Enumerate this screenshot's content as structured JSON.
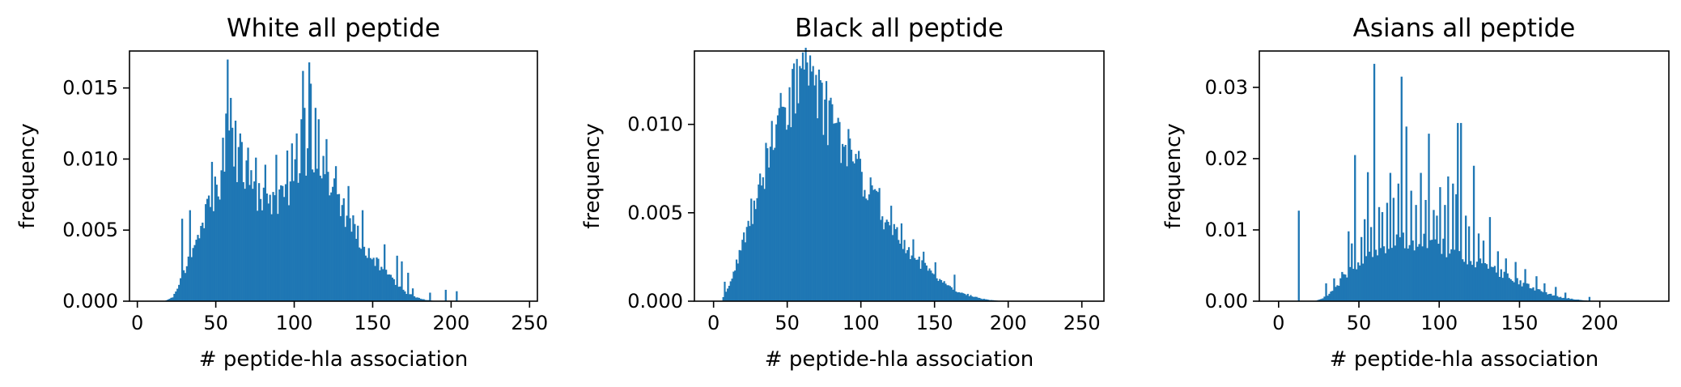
{
  "figure": {
    "accent_color": "#1f77b4"
  },
  "chart_data": [
    {
      "type": "bar",
      "subtype": "histogram",
      "title": "White  all peptide",
      "xlabel": "# peptide-hla association",
      "ylabel": "frequency",
      "xlim": [
        -5,
        255
      ],
      "ylim": [
        0,
        0.0176
      ],
      "xticks": [
        0,
        50,
        100,
        150,
        200,
        250
      ],
      "yticks": [
        0.0,
        0.005,
        0.01,
        0.015
      ],
      "ytick_labels": [
        "0.000",
        "0.005",
        "0.010",
        "0.015"
      ],
      "bin_width": 1,
      "color": "#1f77b4",
      "profile": [
        [
          17,
          0.0
        ],
        [
          22,
          0.0003
        ],
        [
          27,
          0.0015
        ],
        [
          32,
          0.0028
        ],
        [
          38,
          0.0045
        ],
        [
          45,
          0.0065
        ],
        [
          52,
          0.0085
        ],
        [
          58,
          0.0103
        ],
        [
          63,
          0.0098
        ],
        [
          68,
          0.0088
        ],
        [
          73,
          0.0078
        ],
        [
          78,
          0.0072
        ],
        [
          84,
          0.0068
        ],
        [
          90,
          0.007
        ],
        [
          96,
          0.0078
        ],
        [
          102,
          0.009
        ],
        [
          107,
          0.01
        ],
        [
          112,
          0.0098
        ],
        [
          118,
          0.0088
        ],
        [
          124,
          0.0077
        ],
        [
          130,
          0.0066
        ],
        [
          137,
          0.0053
        ],
        [
          144,
          0.004
        ],
        [
          150,
          0.003
        ],
        [
          157,
          0.0021
        ],
        [
          164,
          0.0013
        ],
        [
          171,
          0.0006
        ],
        [
          177,
          0.0003
        ],
        [
          183,
          0.0001
        ],
        [
          190,
          0.0
        ],
        [
          245,
          0.0
        ]
      ],
      "spikes": [
        [
          28,
          0.0058
        ],
        [
          33,
          0.0064
        ],
        [
          47,
          0.0098
        ],
        [
          54,
          0.0115
        ],
        [
          56,
          0.0132
        ],
        [
          57,
          0.017
        ],
        [
          59,
          0.0143
        ],
        [
          60,
          0.0122
        ],
        [
          62,
          0.0127
        ],
        [
          65,
          0.0118
        ],
        [
          66,
          0.0112
        ],
        [
          70,
          0.0108
        ],
        [
          75,
          0.0101
        ],
        [
          81,
          0.0096
        ],
        [
          88,
          0.0103
        ],
        [
          95,
          0.0106
        ],
        [
          98,
          0.0111
        ],
        [
          101,
          0.0118
        ],
        [
          104,
          0.0128
        ],
        [
          105,
          0.0162
        ],
        [
          106,
          0.0136
        ],
        [
          109,
          0.0168
        ],
        [
          110,
          0.0153
        ],
        [
          113,
          0.0136
        ],
        [
          115,
          0.0128
        ],
        [
          120,
          0.0114
        ],
        [
          126,
          0.0095
        ],
        [
          134,
          0.0081
        ],
        [
          143,
          0.0064
        ],
        [
          157,
          0.004
        ],
        [
          165,
          0.0032
        ],
        [
          168,
          0.0028
        ],
        [
          172,
          0.002
        ],
        [
          175,
          0.0009
        ],
        [
          186,
          0.0006
        ],
        [
          196,
          0.0008
        ],
        [
          203,
          0.0007
        ]
      ]
    },
    {
      "type": "bar",
      "subtype": "histogram",
      "title": "Black  all peptide",
      "xlabel": "# peptide-hla association",
      "ylabel": "frequency",
      "xlim": [
        -13,
        265
      ],
      "ylim": [
        0,
        0.01415
      ],
      "xticks": [
        0,
        50,
        100,
        150,
        200,
        250
      ],
      "yticks": [
        0.0,
        0.005,
        0.01
      ],
      "ytick_labels": [
        "0.000",
        "0.005",
        "0.010"
      ],
      "bin_width": 1,
      "color": "#1f77b4",
      "profile": [
        [
          5,
          0.0
        ],
        [
          9,
          0.0008
        ],
        [
          14,
          0.0018
        ],
        [
          20,
          0.0034
        ],
        [
          27,
          0.0054
        ],
        [
          34,
          0.0074
        ],
        [
          41,
          0.0093
        ],
        [
          48,
          0.0108
        ],
        [
          55,
          0.0118
        ],
        [
          62,
          0.0122
        ],
        [
          68,
          0.0118
        ],
        [
          74,
          0.011
        ],
        [
          80,
          0.01
        ],
        [
          87,
          0.009
        ],
        [
          94,
          0.008
        ],
        [
          101,
          0.0069
        ],
        [
          108,
          0.0058
        ],
        [
          116,
          0.0047
        ],
        [
          124,
          0.0037
        ],
        [
          132,
          0.0028
        ],
        [
          140,
          0.0021
        ],
        [
          148,
          0.0015
        ],
        [
          156,
          0.001
        ],
        [
          165,
          0.0006
        ],
        [
          174,
          0.0003
        ],
        [
          184,
          0.0001
        ],
        [
          195,
          0.0
        ],
        [
          255,
          0.0
        ]
      ],
      "spikes": [
        [
          7,
          0.0011
        ],
        [
          11,
          0.001
        ],
        [
          17,
          0.0026
        ],
        [
          22,
          0.0042
        ],
        [
          25,
          0.0058
        ],
        [
          30,
          0.0066
        ],
        [
          36,
          0.0083
        ],
        [
          42,
          0.01
        ],
        [
          46,
          0.011
        ],
        [
          51,
          0.0121
        ],
        [
          53,
          0.0126
        ],
        [
          56,
          0.0137
        ],
        [
          58,
          0.0133
        ],
        [
          60,
          0.0138
        ],
        [
          61,
          0.0131
        ],
        [
          63,
          0.0135
        ],
        [
          65,
          0.0139
        ],
        [
          67,
          0.0133
        ],
        [
          69,
          0.0128
        ],
        [
          71,
          0.0131
        ],
        [
          72,
          0.0125
        ],
        [
          76,
          0.0118
        ],
        [
          79,
          0.011
        ],
        [
          85,
          0.01
        ],
        [
          92,
          0.0092
        ],
        [
          98,
          0.0085
        ],
        [
          106,
          0.007
        ],
        [
          112,
          0.0064
        ],
        [
          120,
          0.0054
        ],
        [
          127,
          0.0044
        ],
        [
          135,
          0.0035
        ],
        [
          142,
          0.0028
        ],
        [
          150,
          0.0022
        ],
        [
          163,
          0.0015
        ]
      ]
    },
    {
      "type": "bar",
      "subtype": "histogram",
      "title": "Asians  all peptide",
      "xlabel": "# peptide-hla association",
      "ylabel": "frequency",
      "xlim": [
        -12,
        243
      ],
      "ylim": [
        0,
        0.0351
      ],
      "xticks": [
        0,
        50,
        100,
        150,
        200
      ],
      "yticks": [
        0.0,
        0.01,
        0.02,
        0.03
      ],
      "ytick_labels": [
        "0.00",
        "0.01",
        "0.02",
        "0.03"
      ],
      "bin_width": 1,
      "color": "#1f77b4",
      "profile": [
        [
          22,
          0.0
        ],
        [
          26,
          0.0003
        ],
        [
          32,
          0.0012
        ],
        [
          38,
          0.0028
        ],
        [
          45,
          0.0045
        ],
        [
          52,
          0.006
        ],
        [
          58,
          0.007
        ],
        [
          64,
          0.0076
        ],
        [
          70,
          0.008
        ],
        [
          77,
          0.0084
        ],
        [
          84,
          0.0086
        ],
        [
          90,
          0.0086
        ],
        [
          96,
          0.0082
        ],
        [
          102,
          0.0076
        ],
        [
          110,
          0.0068
        ],
        [
          118,
          0.006
        ],
        [
          126,
          0.0052
        ],
        [
          134,
          0.0043
        ],
        [
          142,
          0.0035
        ],
        [
          150,
          0.0026
        ],
        [
          158,
          0.0018
        ],
        [
          166,
          0.0011
        ],
        [
          174,
          0.0006
        ],
        [
          182,
          0.0003
        ],
        [
          190,
          0.0001
        ],
        [
          196,
          0.0
        ],
        [
          235,
          0.0
        ]
      ],
      "spikes": [
        [
          12,
          0.0127
        ],
        [
          29,
          0.0025
        ],
        [
          34,
          0.0032
        ],
        [
          39,
          0.0041
        ],
        [
          43,
          0.0098
        ],
        [
          45,
          0.0081
        ],
        [
          47,
          0.0205
        ],
        [
          51,
          0.009
        ],
        [
          53,
          0.0115
        ],
        [
          55,
          0.0181
        ],
        [
          57,
          0.0104
        ],
        [
          59,
          0.0333
        ],
        [
          62,
          0.0132
        ],
        [
          64,
          0.0125
        ],
        [
          67,
          0.0138
        ],
        [
          69,
          0.018
        ],
        [
          71,
          0.0145
        ],
        [
          74,
          0.0165
        ],
        [
          76,
          0.0315
        ],
        [
          79,
          0.0245
        ],
        [
          82,
          0.0155
        ],
        [
          85,
          0.0135
        ],
        [
          88,
          0.018
        ],
        [
          91,
          0.0142
        ],
        [
          93,
          0.0235
        ],
        [
          96,
          0.0128
        ],
        [
          98,
          0.012
        ],
        [
          100,
          0.016
        ],
        [
          103,
          0.0135
        ],
        [
          105,
          0.0175
        ],
        [
          108,
          0.0165
        ],
        [
          110,
          0.015
        ],
        [
          111,
          0.025
        ],
        [
          113,
          0.025
        ],
        [
          116,
          0.012
        ],
        [
          118,
          0.0105
        ],
        [
          121,
          0.019
        ],
        [
          124,
          0.0095
        ],
        [
          127,
          0.0085
        ],
        [
          131,
          0.0118
        ],
        [
          136,
          0.007
        ],
        [
          141,
          0.006
        ],
        [
          147,
          0.0055
        ],
        [
          153,
          0.0045
        ],
        [
          160,
          0.0035
        ],
        [
          165,
          0.0025
        ],
        [
          172,
          0.002
        ],
        [
          178,
          0.0012
        ],
        [
          193,
          0.0006
        ]
      ]
    }
  ]
}
